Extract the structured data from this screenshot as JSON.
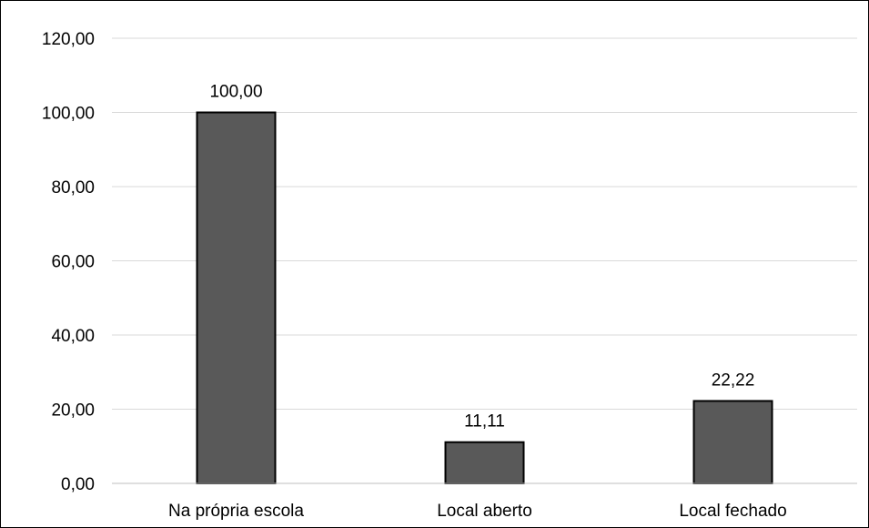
{
  "chart_data": {
    "type": "bar",
    "categories": [
      "Na própria escola",
      "Local aberto",
      "Local fechado"
    ],
    "values": [
      100.0,
      11.11,
      22.22
    ],
    "value_labels": [
      "100,00",
      "11,11",
      "22,22"
    ],
    "title": "",
    "xlabel": "",
    "ylabel": "",
    "ylim": [
      0,
      120
    ],
    "yticks": [
      0,
      20,
      40,
      60,
      80,
      100,
      120
    ],
    "ytick_labels": [
      "0,00",
      "20,00",
      "40,00",
      "60,00",
      "80,00",
      "100,00",
      "120,00"
    ],
    "grid": true,
    "legend": "none",
    "colors": {
      "bar_fill": "#595959",
      "bar_stroke": "#000000",
      "grid": "#d9d9d9",
      "axis": "#bfbfbf",
      "text": "#000000"
    }
  }
}
